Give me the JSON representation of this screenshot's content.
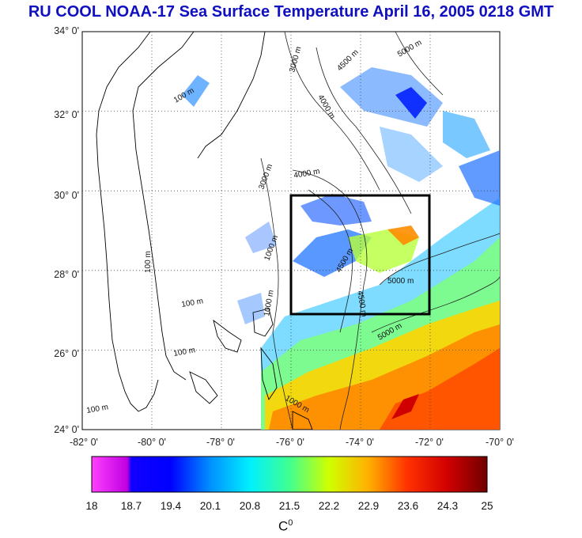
{
  "title": "RU COOL  NOAA-17 Sea Surface Temperature April 16, 2005 0218 GMT",
  "map": {
    "lat_labels": [
      "34° 0'",
      "32° 0'",
      "30° 0'",
      "28° 0'",
      "26° 0'",
      "24° 0'"
    ],
    "lon_labels": [
      "-82° 0'",
      "-80° 0'",
      "-78° 0'",
      "-76° 0'",
      "-74° 0'",
      "-72° 0'",
      "-70° 0'"
    ],
    "lat_range": [
      24,
      34
    ],
    "lon_range": [
      -82,
      -70
    ],
    "box": {
      "lon_min": -76,
      "lon_max": -72,
      "lat_min": 27,
      "lat_max": 30
    },
    "contour_labels": [
      "100 m",
      "100 m",
      "100 m",
      "100 m",
      "100 m",
      "3000 m",
      "3000 m",
      "4000 m",
      "4000 m",
      "4500 m",
      "4500 m",
      "4500 m",
      "5000 m",
      "5000 m",
      "5000 m",
      "1000 m",
      "1000 m",
      "1000 m"
    ]
  },
  "colorbar": {
    "ticks": [
      "18",
      "18.7",
      "19.4",
      "20.1",
      "20.8",
      "21.5",
      "22.2",
      "22.9",
      "23.6",
      "24.3",
      "25"
    ],
    "unit": "C",
    "unit_sup": "0",
    "colors": [
      "#ff40ff",
      "#c000ff",
      "#0000ff",
      "#0080ff",
      "#00e0ff",
      "#40ff80",
      "#ffff00",
      "#ffa000",
      "#ff2000",
      "#800000"
    ]
  }
}
